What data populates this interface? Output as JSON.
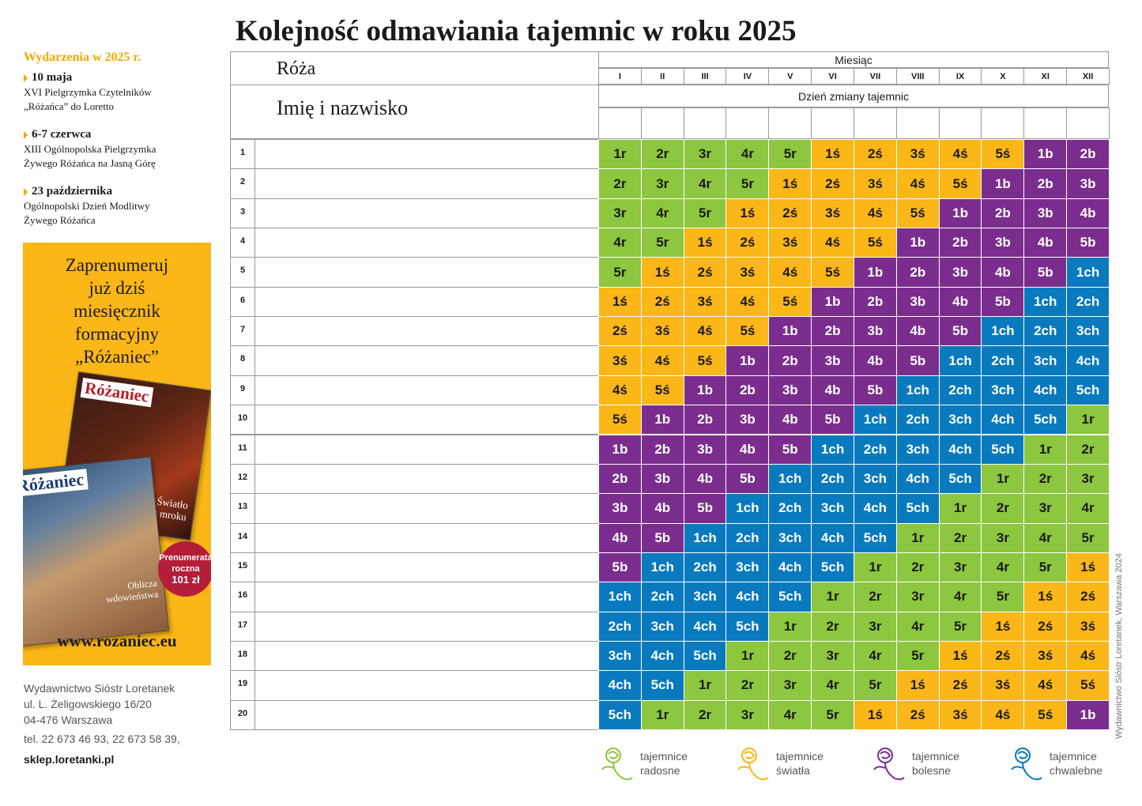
{
  "title": "Kolejność odmawiania tajemnic w roku 2025",
  "events": {
    "heading": "Wydarzenia w 2025 r.",
    "items": [
      {
        "date": "10 maja",
        "lines": [
          "XVI Pielgrzymka Czytelników",
          "„Różańca” do Loretto"
        ]
      },
      {
        "date": "6-7 czerwca",
        "lines": [
          "XIII Ogólnopolska Pielgrzymka",
          "Żywego Różańca na Jasną Górę"
        ]
      },
      {
        "date": "23 października",
        "lines": [
          "Ogólnopolski Dzień Modlitwy",
          "Żywego Różańca"
        ]
      }
    ]
  },
  "ad": {
    "headline": [
      "Zaprenumeruj",
      "już dziś",
      "miesięcznik",
      "formacyjny",
      "„Różaniec”"
    ],
    "mag1_title": "Różaniec",
    "mag1_caption": "Światło\nw mroku",
    "mag2_title": "Różaniec",
    "mag2_caption": "Oblicza\nwdowieństwa",
    "badge_text": "Prenumerata\nroczna",
    "badge_price": "101 zł",
    "url": "www.rozaniec.eu"
  },
  "publisher": {
    "lines": [
      "Wydawnictwo Sióstr Loretanek",
      "ul. L. Żeligowskiego 16/20",
      "04-476 Warszawa",
      "tel. 22 673 46 93, 22 673 58 39,"
    ],
    "shop": "sklep.loretanki.pl"
  },
  "table": {
    "label_rose": "Róża",
    "label_name": "Imię i nazwisko",
    "month_header": "Miesiąc",
    "day_header": "Dzień zmiany tajemnic",
    "months": [
      "I",
      "II",
      "III",
      "IV",
      "V",
      "VI",
      "VII",
      "VIII",
      "IX",
      "X",
      "XI",
      "XII"
    ],
    "rows": [
      [
        "1r",
        "2r",
        "3r",
        "4r",
        "5r",
        "1ś",
        "2ś",
        "3ś",
        "4ś",
        "5ś",
        "1b",
        "2b"
      ],
      [
        "2r",
        "3r",
        "4r",
        "5r",
        "1ś",
        "2ś",
        "3ś",
        "4ś",
        "5ś",
        "1b",
        "2b",
        "3b"
      ],
      [
        "3r",
        "4r",
        "5r",
        "1ś",
        "2ś",
        "3ś",
        "4ś",
        "5ś",
        "1b",
        "2b",
        "3b",
        "4b"
      ],
      [
        "4r",
        "5r",
        "1ś",
        "2ś",
        "3ś",
        "4ś",
        "5ś",
        "1b",
        "2b",
        "3b",
        "4b",
        "5b"
      ],
      [
        "5r",
        "1ś",
        "2ś",
        "3ś",
        "4ś",
        "5ś",
        "1b",
        "2b",
        "3b",
        "4b",
        "5b",
        "1ch"
      ],
      [
        "1ś",
        "2ś",
        "3ś",
        "4ś",
        "5ś",
        "1b",
        "2b",
        "3b",
        "4b",
        "5b",
        "1ch",
        "2ch"
      ],
      [
        "2ś",
        "3ś",
        "4ś",
        "5ś",
        "1b",
        "2b",
        "3b",
        "4b",
        "5b",
        "1ch",
        "2ch",
        "3ch"
      ],
      [
        "3ś",
        "4ś",
        "5ś",
        "1b",
        "2b",
        "3b",
        "4b",
        "5b",
        "1ch",
        "2ch",
        "3ch",
        "4ch"
      ],
      [
        "4ś",
        "5ś",
        "1b",
        "2b",
        "3b",
        "4b",
        "5b",
        "1ch",
        "2ch",
        "3ch",
        "4ch",
        "5ch"
      ],
      [
        "5ś",
        "1b",
        "2b",
        "3b",
        "4b",
        "5b",
        "1ch",
        "2ch",
        "3ch",
        "4ch",
        "5ch",
        "1r"
      ],
      [
        "1b",
        "2b",
        "3b",
        "4b",
        "5b",
        "1ch",
        "2ch",
        "3ch",
        "4ch",
        "5ch",
        "1r",
        "2r"
      ],
      [
        "2b",
        "3b",
        "4b",
        "5b",
        "1ch",
        "2ch",
        "3ch",
        "4ch",
        "5ch",
        "1r",
        "2r",
        "3r"
      ],
      [
        "3b",
        "4b",
        "5b",
        "1ch",
        "2ch",
        "3ch",
        "4ch",
        "5ch",
        "1r",
        "2r",
        "3r",
        "4r"
      ],
      [
        "4b",
        "5b",
        "1ch",
        "2ch",
        "3ch",
        "4ch",
        "5ch",
        "1r",
        "2r",
        "3r",
        "4r",
        "5r"
      ],
      [
        "5b",
        "1ch",
        "2ch",
        "3ch",
        "4ch",
        "5ch",
        "1r",
        "2r",
        "3r",
        "4r",
        "5r",
        "1ś"
      ],
      [
        "1ch",
        "2ch",
        "3ch",
        "4ch",
        "5ch",
        "1r",
        "2r",
        "3r",
        "4r",
        "5r",
        "1ś",
        "2ś"
      ],
      [
        "2ch",
        "3ch",
        "4ch",
        "5ch",
        "1r",
        "2r",
        "3r",
        "4r",
        "5r",
        "1ś",
        "2ś",
        "3ś"
      ],
      [
        "3ch",
        "4ch",
        "5ch",
        "1r",
        "2r",
        "3r",
        "4r",
        "5r",
        "1ś",
        "2ś",
        "3ś",
        "4ś"
      ],
      [
        "4ch",
        "5ch",
        "1r",
        "2r",
        "3r",
        "4r",
        "5r",
        "1ś",
        "2ś",
        "3ś",
        "4ś",
        "5ś"
      ],
      [
        "5ch",
        "1r",
        "2r",
        "3r",
        "4r",
        "5r",
        "1ś",
        "2ś",
        "3ś",
        "4ś",
        "5ś",
        "1b"
      ]
    ]
  },
  "colors": {
    "r": "#8dc63f",
    "s": "#fbb617",
    "b": "#7b2d8e",
    "ch": "#0a7abf"
  },
  "legend": [
    {
      "icon": "rose-icon",
      "line1": "tajemnice",
      "line2": "radosne",
      "color": "#8dc63f"
    },
    {
      "icon": "rose-icon",
      "line1": "tajemnice",
      "line2": "światła",
      "color": "#fbb617"
    },
    {
      "icon": "rose-icon",
      "line1": "tajemnice",
      "line2": "bolesne",
      "color": "#7b2d8e"
    },
    {
      "icon": "rose-icon",
      "line1": "tajemnice",
      "line2": "chwalebne",
      "color": "#0a7abf"
    }
  ],
  "side_note": "Wydawnictwo Sióstr Loretanek, Warszawa 2024"
}
